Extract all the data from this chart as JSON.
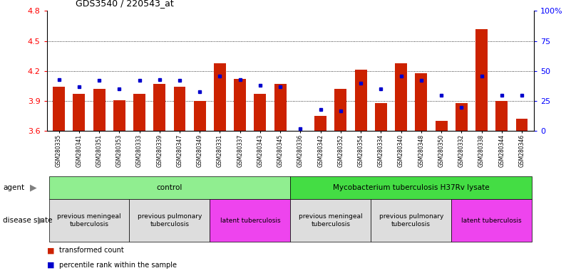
{
  "title": "GDS3540 / 220543_at",
  "samples": [
    "GSM280335",
    "GSM280341",
    "GSM280351",
    "GSM280353",
    "GSM280333",
    "GSM280339",
    "GSM280347",
    "GSM280349",
    "GSM280331",
    "GSM280337",
    "GSM280343",
    "GSM280345",
    "GSM280336",
    "GSM280342",
    "GSM280352",
    "GSM280354",
    "GSM280334",
    "GSM280340",
    "GSM280348",
    "GSM280350",
    "GSM280332",
    "GSM280338",
    "GSM280344",
    "GSM280346"
  ],
  "transformed_count": [
    4.04,
    3.97,
    4.02,
    3.91,
    3.97,
    4.07,
    4.04,
    3.9,
    4.28,
    4.12,
    3.97,
    4.07,
    3.6,
    3.75,
    4.02,
    4.21,
    3.88,
    4.28,
    4.18,
    3.7,
    3.88,
    4.62,
    3.9,
    3.72
  ],
  "percentile_rank": [
    43,
    37,
    42,
    35,
    42,
    43,
    42,
    33,
    46,
    43,
    38,
    37,
    2,
    18,
    17,
    40,
    35,
    46,
    42,
    30,
    20,
    46,
    30,
    30
  ],
  "ylim_left": [
    3.6,
    4.8
  ],
  "ylim_right": [
    0,
    100
  ],
  "yticks_left": [
    3.6,
    3.9,
    4.2,
    4.5,
    4.8
  ],
  "yticks_right": [
    0,
    25,
    50,
    75,
    100
  ],
  "bar_color": "#cc2200",
  "dot_color": "#0000cc",
  "n_samples": 24,
  "agent_groups": [
    {
      "label": "control",
      "start": 0,
      "end": 11,
      "color": "#90ee90"
    },
    {
      "label": "Mycobacterium tuberculosis H37Rv lysate",
      "start": 12,
      "end": 23,
      "color": "#44dd44"
    }
  ],
  "disease_groups": [
    {
      "label": "previous meningeal\ntuberculosis",
      "start": 0,
      "end": 3,
      "color": "#dddddd"
    },
    {
      "label": "previous pulmonary\ntuberculosis",
      "start": 4,
      "end": 7,
      "color": "#dddddd"
    },
    {
      "label": "latent tuberculosis",
      "start": 8,
      "end": 11,
      "color": "#ee44ee"
    },
    {
      "label": "previous meningeal\ntuberculosis",
      "start": 12,
      "end": 15,
      "color": "#dddddd"
    },
    {
      "label": "previous pulmonary\ntuberculosis",
      "start": 16,
      "end": 19,
      "color": "#dddddd"
    },
    {
      "label": "latent tuberculosis",
      "start": 20,
      "end": 23,
      "color": "#ee44ee"
    }
  ]
}
